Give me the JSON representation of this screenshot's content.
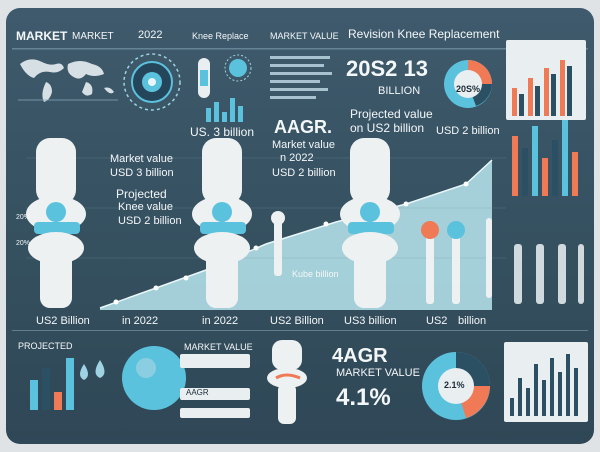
{
  "header": {
    "left_title": "MARKET",
    "left_title_2": "MARKET",
    "year": "2022",
    "knee_replace": "Knee Replace",
    "market_value": "MARKET VALUE",
    "right_title": "Revision Knee Replacement"
  },
  "top_row": {
    "usd_3_billion": "US. 3 billion",
    "big_number": "20S2 13",
    "billion": "BILLION",
    "pie_label": "20S%",
    "aagr": "AAGR.",
    "market_value_line": "Market value",
    "n2022": "n 2022",
    "usd2billion": "USD 2 billion",
    "projected_value": "Projected value",
    "on_usd2_billion": "on US2 billion",
    "usd_2_billion_right": "USD 2 billion"
  },
  "middle": {
    "market_value": "Market value",
    "usd3": "USD 3 billion",
    "projected": "Projected",
    "knee_value": "Knee value",
    "usd2": "USD 2 billion",
    "kube_billion": "Kube billion",
    "axis_top": "20%",
    "axis_bottom": "20%"
  },
  "bottom_labels": {
    "a": "US2 Billion",
    "b": "in 2022",
    "c": "in 2022",
    "d": "US2 Billion",
    "e": "US3 billion",
    "f": "US2",
    "g": "billion"
  },
  "footer": {
    "projected": "PROJECTED",
    "market_value": "MARKET VALUE",
    "aagr": "AAGR",
    "agr_big": "4AGR",
    "market_value_2": "MARKET VALUE",
    "percent": "4.1%",
    "donut_label": "2.1%"
  },
  "colors": {
    "background": "#3e5a6c",
    "accent_blue": "#5bc2de",
    "accent_orange": "#f07a55",
    "bone": "#eef1f2",
    "teal_light": "#b9e6ee"
  }
}
